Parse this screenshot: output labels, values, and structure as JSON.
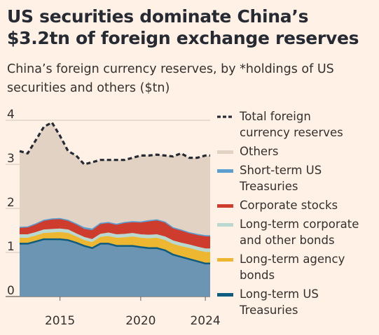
{
  "title": "US securities dominate China’s $3.2tn of foreign exchange reserves",
  "subtitle": "China’s foreign currency reserves, by *holdings of US securities and others ($tn)",
  "colors": {
    "background": "#FFF1E5",
    "others": "#E2D2C4",
    "short_term_treasuries": "#5A9FD0",
    "corporate_stocks": "#CE3C2E",
    "long_term_corporate": "#B9D9D0",
    "long_term_agency": "#EDB731",
    "long_term_treasuries": "#6B95B3",
    "long_term_treasuries_line": "#0E5C80",
    "total": "#262A33",
    "gridline": "#CEC6B9"
  },
  "chart_data": {
    "type": "area",
    "x_ticks": [
      "2015",
      "2020",
      "2024"
    ],
    "y_ticks": [
      "0",
      "1",
      "2",
      "3",
      "4"
    ],
    "ylim": [
      0,
      4
    ],
    "xlim": [
      2012.5,
      2024.3
    ],
    "grid": true,
    "legend_position": "right",
    "legend": [
      {
        "label": "Total foreign currency reserves",
        "lines": [
          "Total foreign",
          "currency reserves"
        ],
        "style": "dashed-line",
        "color": "#262A33"
      },
      {
        "label": "Others",
        "lines": [
          "Others"
        ],
        "style": "swatch",
        "color": "#E2D2C4"
      },
      {
        "label": "Short-term US Treasuries",
        "lines": [
          "Short-term US",
          "Treasuries"
        ],
        "style": "swatch",
        "color": "#5A9FD0"
      },
      {
        "label": "Corporate stocks",
        "lines": [
          "Corporate stocks"
        ],
        "style": "swatch",
        "color": "#CE3C2E"
      },
      {
        "label": "Long-term corporate and other bonds",
        "lines": [
          "Long-term corporate",
          "and other bonds"
        ],
        "style": "swatch",
        "color": "#B9D9D0"
      },
      {
        "label": "Long-term agency bonds",
        "lines": [
          "Long-term agency",
          "bonds"
        ],
        "style": "swatch",
        "color": "#EDB731"
      },
      {
        "label": "Long-term US Treasuries",
        "lines": [
          "Long-term US",
          "Treasuries"
        ],
        "style": "swatch",
        "color": "#0E5C80"
      }
    ],
    "x": [
      2012.5,
      2013.0,
      2013.5,
      2014.0,
      2014.5,
      2015.0,
      2015.5,
      2016.0,
      2016.5,
      2017.0,
      2017.5,
      2018.0,
      2018.5,
      2019.0,
      2019.5,
      2020.0,
      2020.5,
      2021.0,
      2021.5,
      2022.0,
      2022.5,
      2023.0,
      2023.5,
      2024.0,
      2024.3
    ],
    "total": [
      3.3,
      3.25,
      3.55,
      3.85,
      3.95,
      3.65,
      3.3,
      3.2,
      3.0,
      3.05,
      3.1,
      3.1,
      3.1,
      3.1,
      3.15,
      3.2,
      3.2,
      3.22,
      3.2,
      3.18,
      3.25,
      3.15,
      3.15,
      3.2,
      3.2
    ],
    "series": [
      {
        "name": "Long-term US Treasuries",
        "values": [
          1.2,
          1.2,
          1.25,
          1.3,
          1.3,
          1.3,
          1.28,
          1.22,
          1.15,
          1.1,
          1.2,
          1.2,
          1.15,
          1.15,
          1.15,
          1.12,
          1.1,
          1.1,
          1.05,
          0.95,
          0.9,
          0.85,
          0.8,
          0.75,
          0.75
        ]
      },
      {
        "name": "Long-term agency bonds",
        "values": [
          0.12,
          0.12,
          0.12,
          0.13,
          0.14,
          0.15,
          0.15,
          0.13,
          0.12,
          0.12,
          0.14,
          0.16,
          0.17,
          0.18,
          0.2,
          0.2,
          0.21,
          0.22,
          0.22,
          0.23,
          0.23,
          0.24,
          0.24,
          0.25,
          0.25
        ]
      },
      {
        "name": "Long-term corporate and other bonds",
        "values": [
          0.08,
          0.08,
          0.08,
          0.08,
          0.08,
          0.08,
          0.08,
          0.07,
          0.07,
          0.07,
          0.07,
          0.08,
          0.08,
          0.08,
          0.08,
          0.08,
          0.08,
          0.08,
          0.08,
          0.08,
          0.08,
          0.08,
          0.08,
          0.08,
          0.08
        ]
      },
      {
        "name": "Corporate stocks",
        "values": [
          0.15,
          0.16,
          0.18,
          0.2,
          0.22,
          0.22,
          0.2,
          0.2,
          0.18,
          0.2,
          0.22,
          0.22,
          0.22,
          0.25,
          0.25,
          0.27,
          0.3,
          0.32,
          0.32,
          0.28,
          0.28,
          0.26,
          0.27,
          0.28,
          0.27
        ]
      },
      {
        "name": "Short-term US Treasuries",
        "values": [
          0.02,
          0.02,
          0.02,
          0.02,
          0.02,
          0.02,
          0.02,
          0.03,
          0.04,
          0.04,
          0.03,
          0.02,
          0.02,
          0.02,
          0.02,
          0.02,
          0.03,
          0.02,
          0.02,
          0.02,
          0.02,
          0.02,
          0.02,
          0.02,
          0.03
        ]
      }
    ]
  }
}
